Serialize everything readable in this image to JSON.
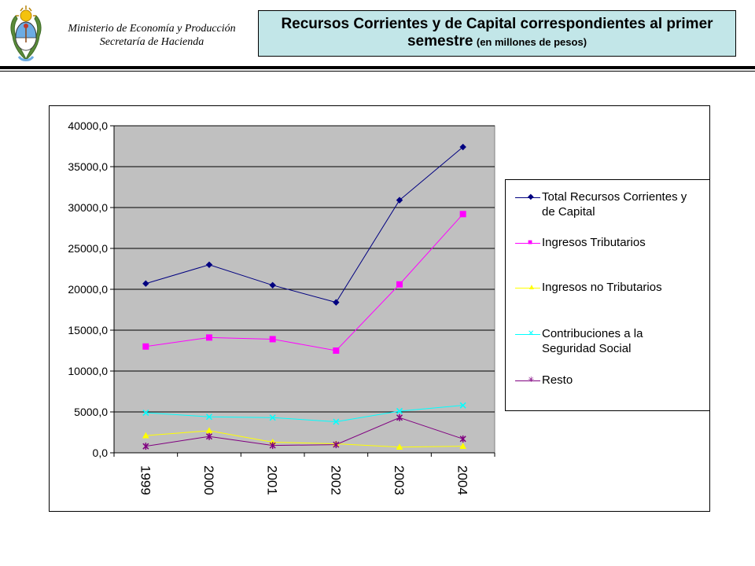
{
  "header": {
    "ministry_line1": "Ministerio de Economía y Producción",
    "ministry_line2": "Secretaría de Hacienda",
    "title_main": "Recursos Corrientes y de Capital correspondientes al primer semestre",
    "title_sub": "(en millones de pesos)"
  },
  "chart_data": {
    "type": "line",
    "categories": [
      "1999",
      "2000",
      "2001",
      "2002",
      "2003",
      "2004"
    ],
    "ylim": [
      0,
      40000
    ],
    "yticks": [
      "0,0",
      "5000,0",
      "10000,0",
      "15000,0",
      "20000,0",
      "25000,0",
      "30000,0",
      "35000,0",
      "40000,0"
    ],
    "grid": true,
    "plot_background": "#c0c0c0",
    "legend_position": "right",
    "series": [
      {
        "name": "Total Recursos Corrientes y de Capital",
        "color": "#000080",
        "marker": "diamond",
        "values": [
          20700,
          23000,
          20500,
          18400,
          30900,
          37400
        ]
      },
      {
        "name": "Ingresos Tributarios",
        "color": "#ff00ff",
        "marker": "square",
        "values": [
          13000,
          14100,
          13900,
          12500,
          20600,
          29200
        ]
      },
      {
        "name": "Ingresos no Tributarios",
        "color": "#ffff00",
        "marker": "triangle",
        "values": [
          2100,
          2700,
          1300,
          1100,
          700,
          800
        ]
      },
      {
        "name": "Contribuciones a la Seguridad Social",
        "color": "#00ffff",
        "marker": "x",
        "values": [
          4900,
          4400,
          4300,
          3800,
          5100,
          5800
        ]
      },
      {
        "name": "Resto",
        "color": "#800080",
        "marker": "star",
        "values": [
          800,
          2000,
          900,
          1000,
          4300,
          1700
        ]
      }
    ]
  },
  "legend": {
    "items": [
      {
        "line1": "Total Recursos Corrientes y",
        "line2": "de Capital"
      },
      {
        "line1": "Ingresos Tributarios",
        "line2": ""
      },
      {
        "line1": "Ingresos no Tributarios",
        "line2": ""
      },
      {
        "line1": "Contribuciones a la",
        "line2": "Seguridad Social"
      },
      {
        "line1": "Resto",
        "line2": ""
      }
    ]
  }
}
